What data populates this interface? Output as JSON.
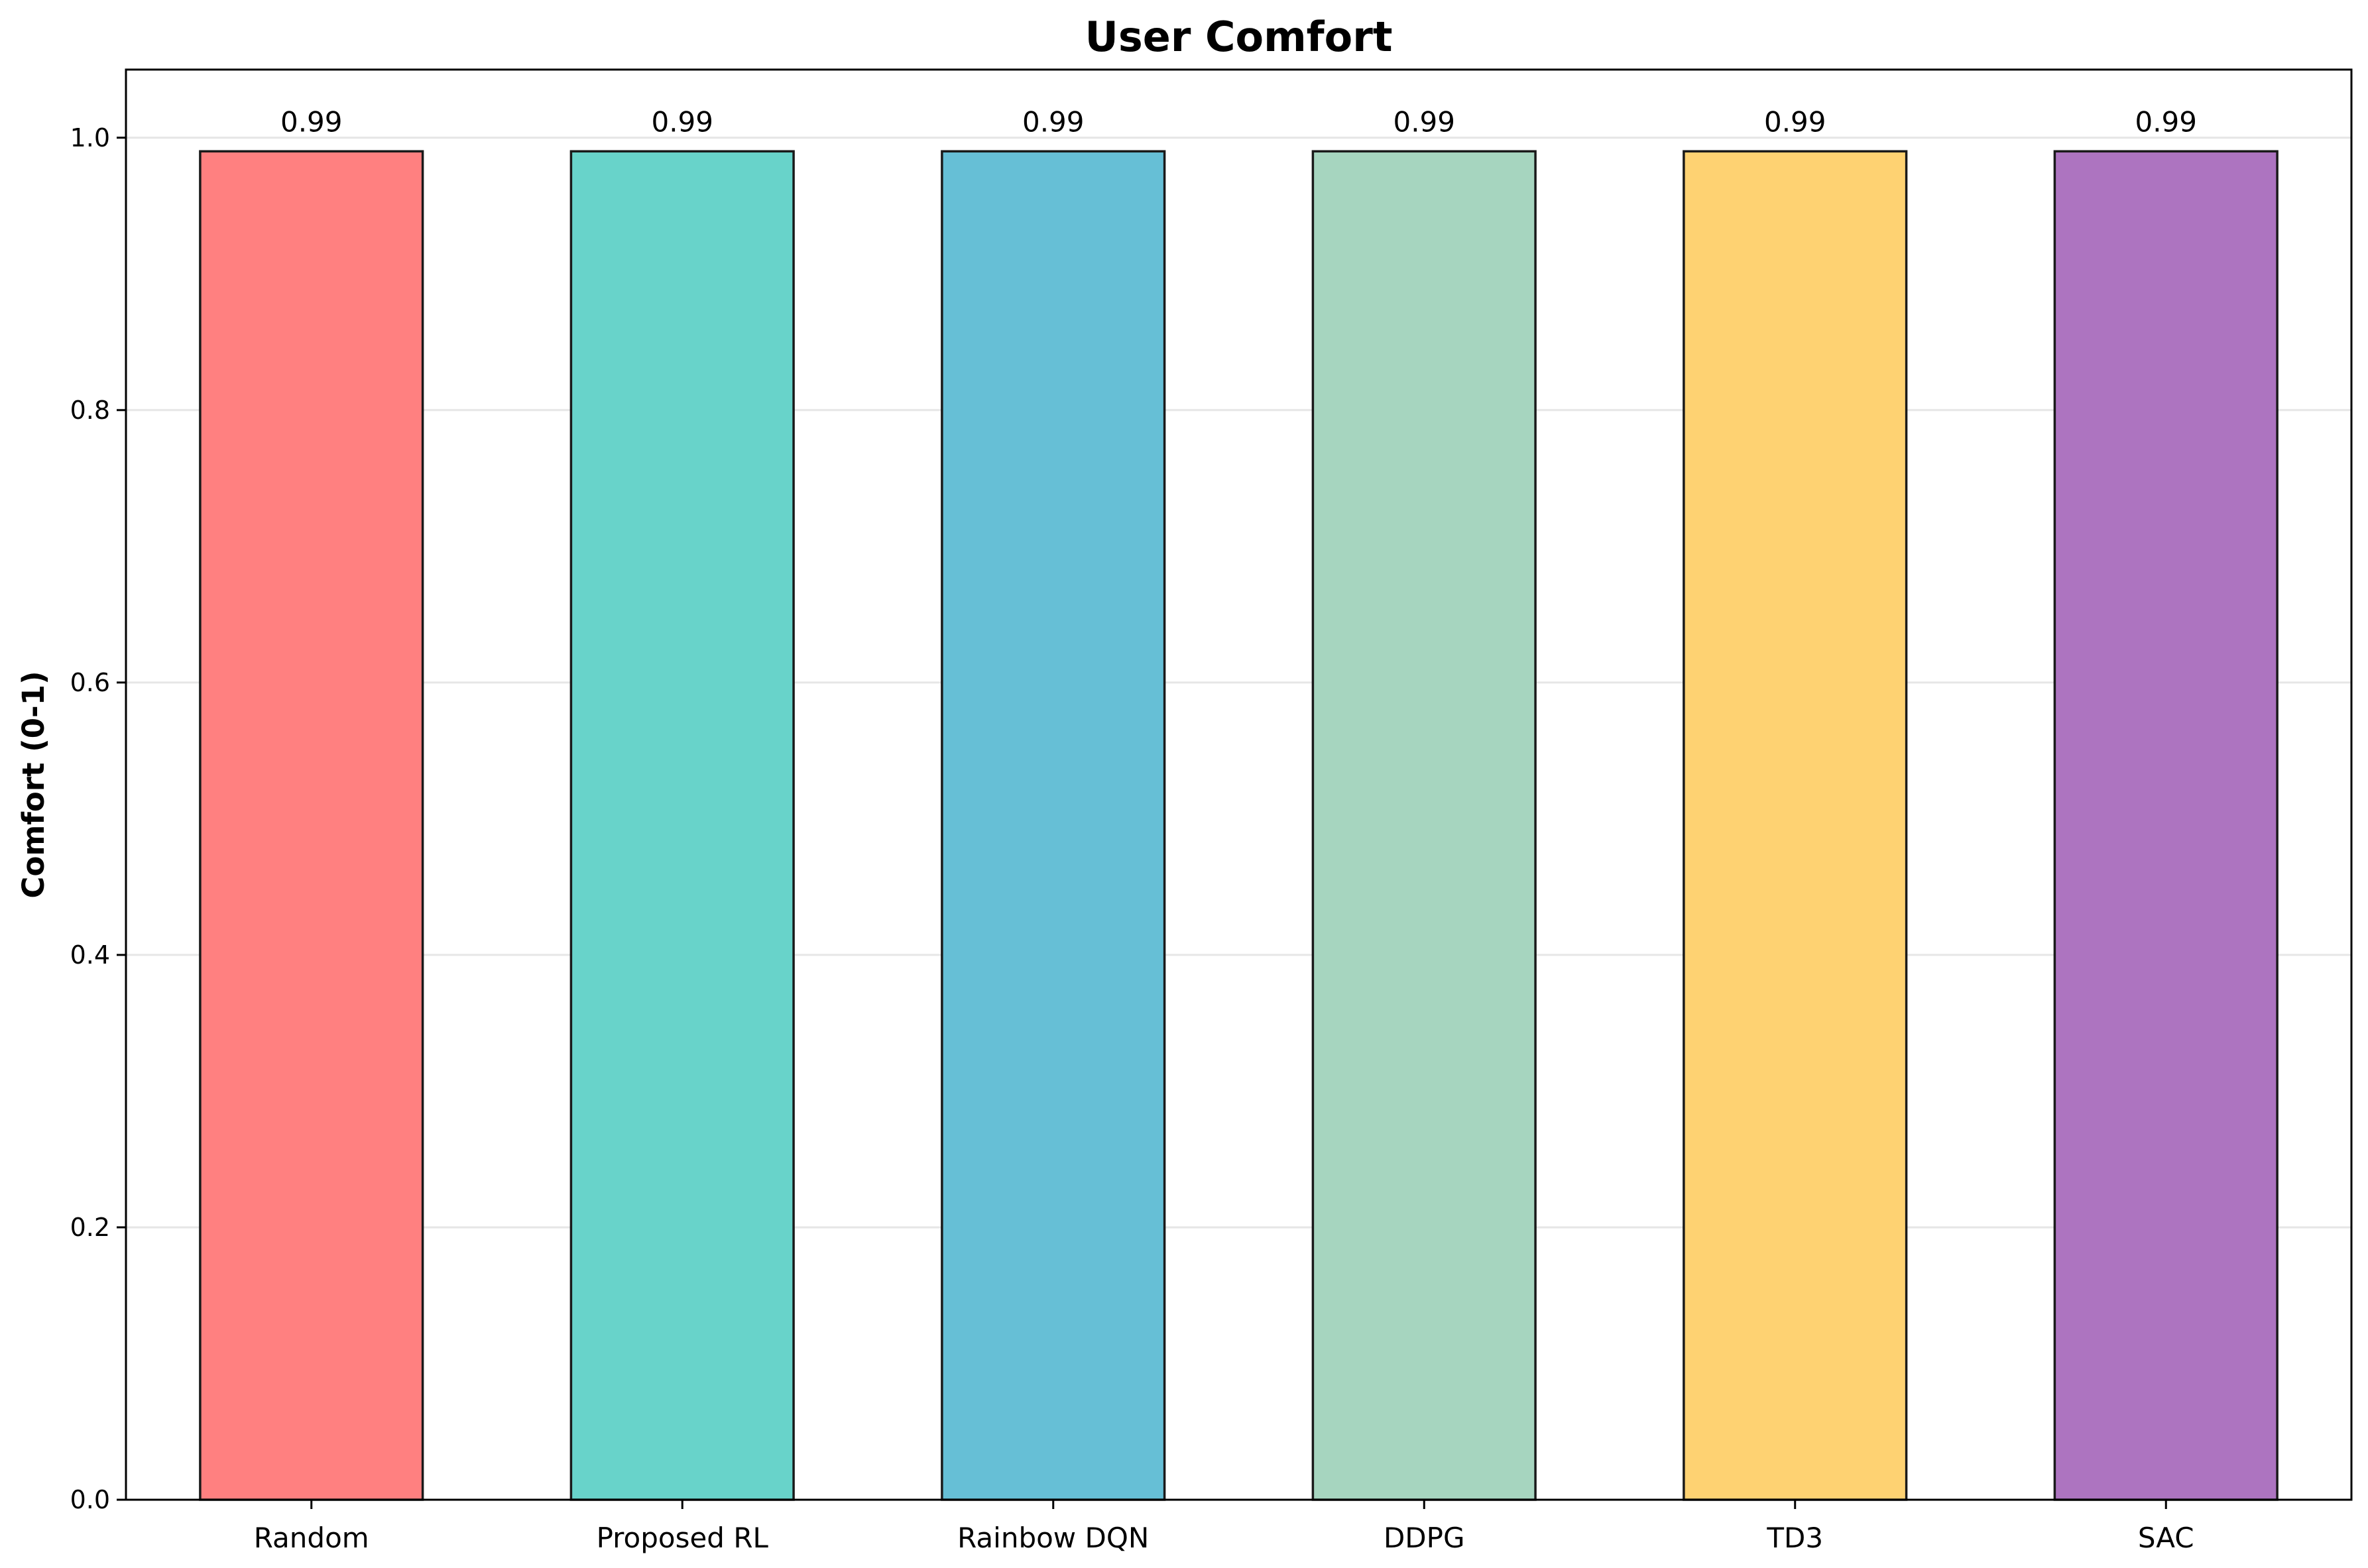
{
  "chart_data": {
    "type": "bar",
    "title": "User Comfort",
    "xlabel": "",
    "ylabel": "Comfort (0-1)",
    "ylim": [
      0,
      1.05
    ],
    "yticks": [
      0.0,
      0.2,
      0.4,
      0.6,
      0.8,
      1.0
    ],
    "ytick_labels": [
      "0.0",
      "0.2",
      "0.4",
      "0.6",
      "0.8",
      "1.0"
    ],
    "grid": true,
    "categories": [
      "Random",
      "Proposed RL",
      "Rainbow DQN",
      "DDPG",
      "TD3",
      "SAC"
    ],
    "values": [
      0.99,
      0.99,
      0.99,
      0.99,
      0.99,
      0.99
    ],
    "data_labels": [
      "0.99",
      "0.99",
      "0.99",
      "0.99",
      "0.99",
      "0.99"
    ],
    "colors": [
      "#FF8080",
      "#68D3CA",
      "#66BFD6",
      "#A6D5BF",
      "#FED272",
      "#AD74C0"
    ]
  }
}
